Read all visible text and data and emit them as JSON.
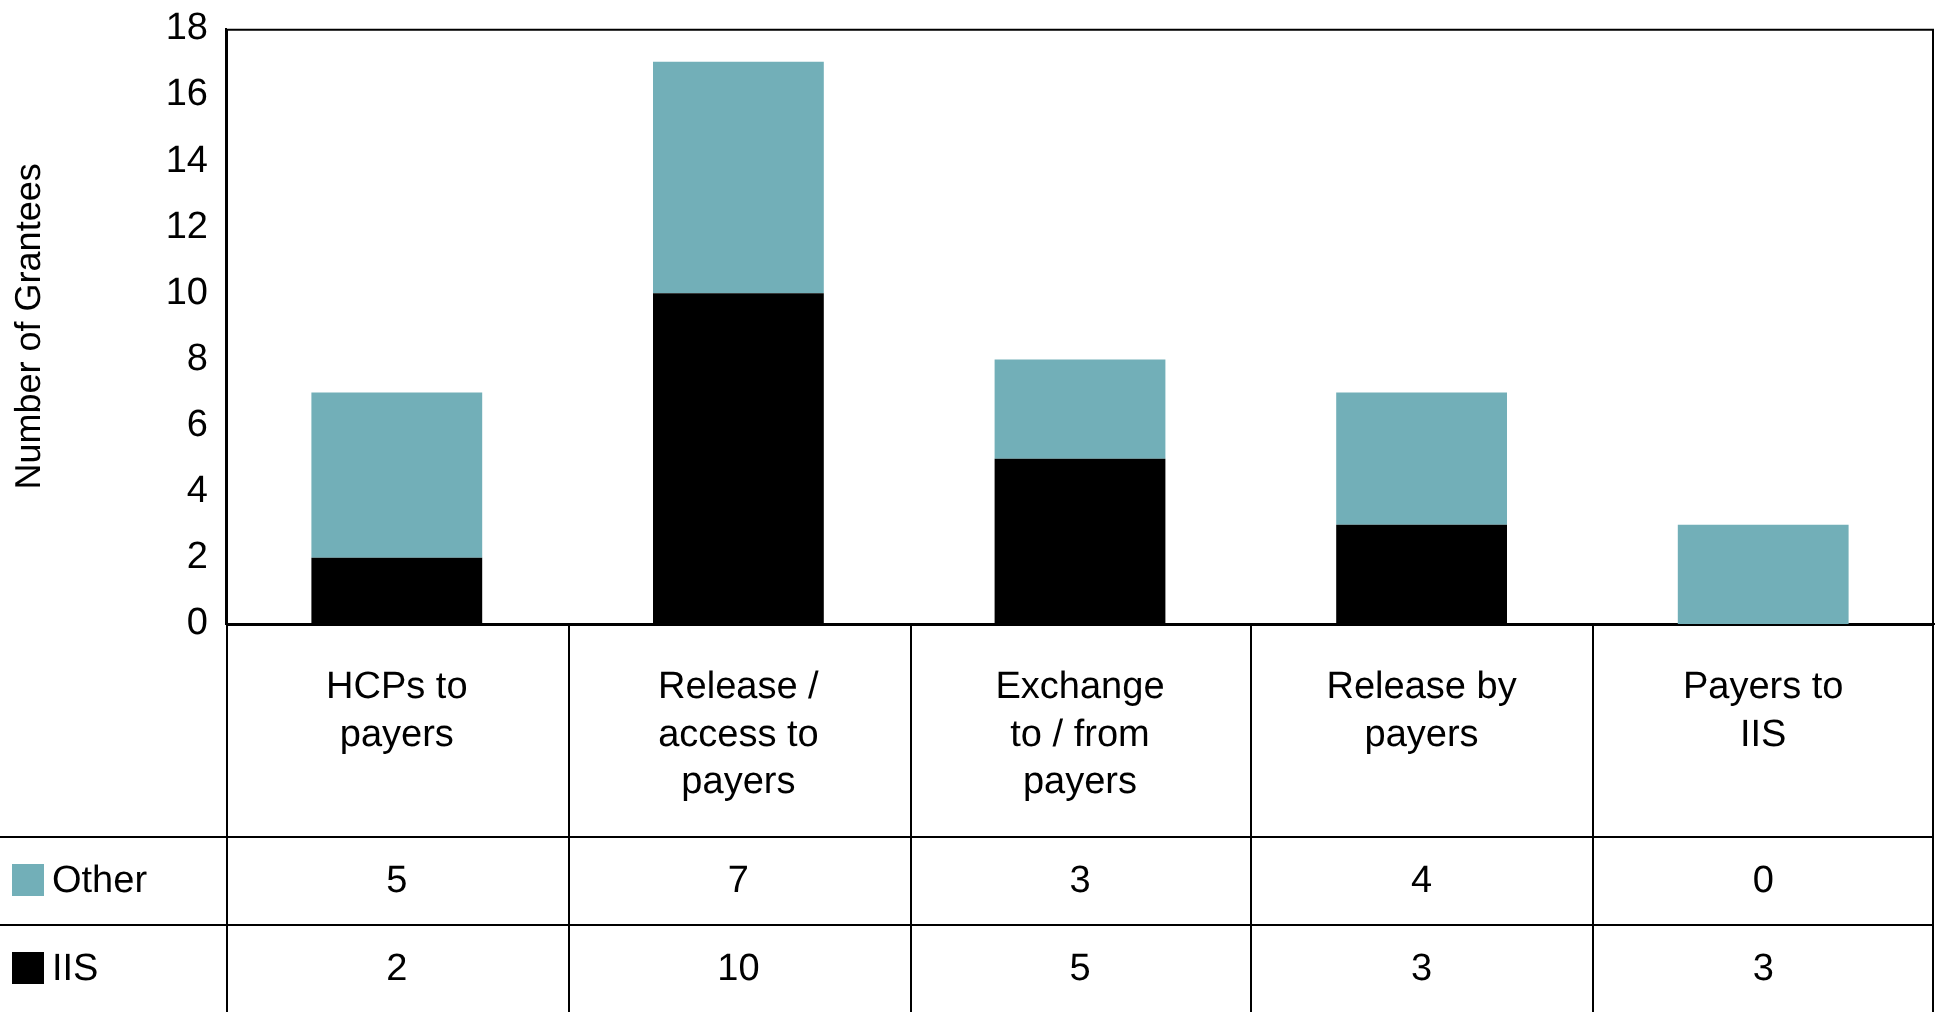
{
  "chart_data": {
    "type": "bar",
    "stacked": true,
    "ylabel": "Number of Grantees",
    "categories": [
      "HCPs to payers",
      "Release / access to payers",
      "Exchange to / from payers",
      "Release by payers",
      "Payers to IIS"
    ],
    "series": [
      {
        "name": "IIS",
        "color": "#000000",
        "colors": [
          "#000000",
          "#000000",
          "#000000",
          "#000000",
          "#72afb8"
        ],
        "values": [
          2,
          10,
          5,
          3,
          3
        ]
      },
      {
        "name": "Other",
        "color": "#72afb8",
        "values": [
          5,
          7,
          3,
          4,
          0
        ]
      }
    ],
    "ylim": [
      0,
      18
    ],
    "yticks": [
      0,
      2,
      4,
      6,
      8,
      10,
      12,
      14,
      16,
      18
    ],
    "grid": false,
    "legend": "bottom",
    "data_labels": true
  }
}
